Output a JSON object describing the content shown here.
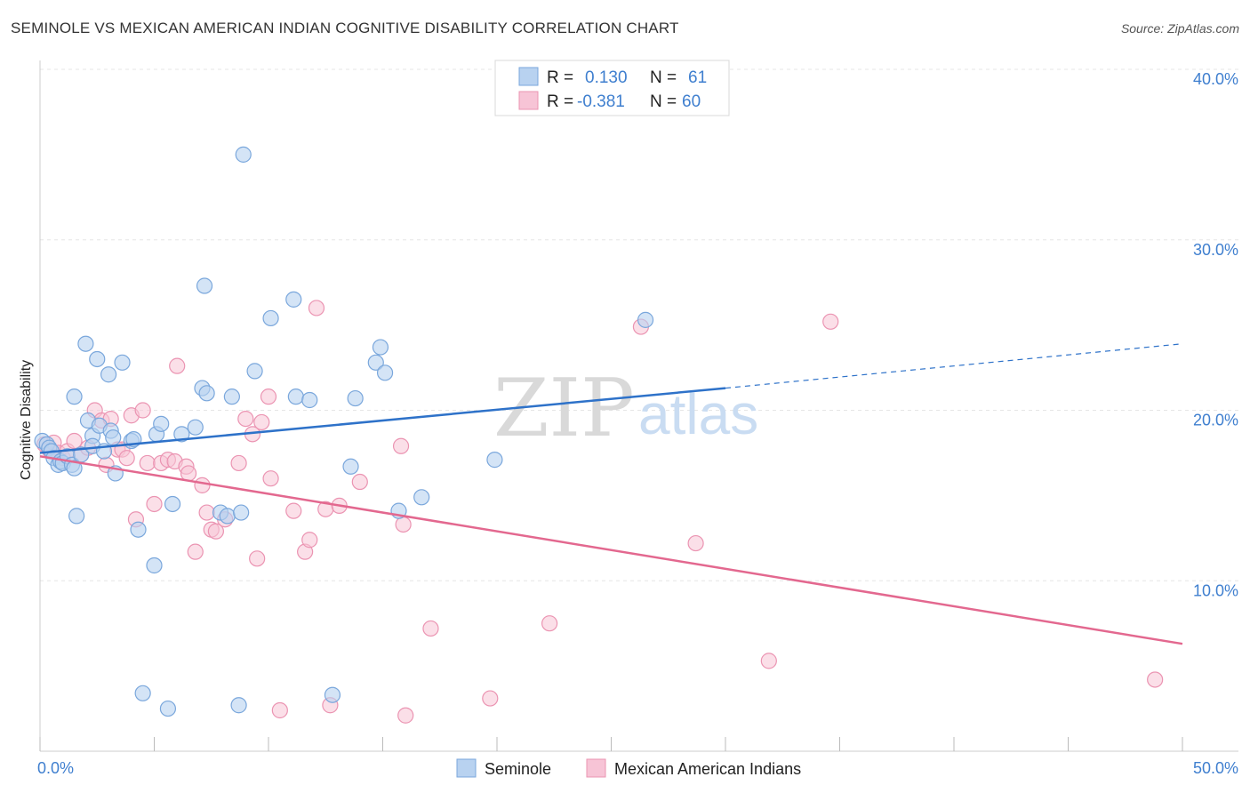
{
  "header": {
    "title": "SEMINOLE VS MEXICAN AMERICAN INDIAN COGNITIVE DISABILITY CORRELATION CHART",
    "source": "Source: ZipAtlas.com"
  },
  "watermark": {
    "zip": "ZIP",
    "atlas": "atlas"
  },
  "legend_top": {
    "rows": [
      {
        "r_label": "R =",
        "r_value": "0.130",
        "n_label": "N =",
        "n_value": "61"
      },
      {
        "r_label": "R =",
        "r_value": "-0.381",
        "n_label": "N =",
        "n_value": "60"
      }
    ]
  },
  "legend_bottom": {
    "items": [
      "Seminole",
      "Mexican American Indians"
    ]
  },
  "colors": {
    "seminole_fill": "#b8d2f0",
    "seminole_stroke": "#7aa7dc",
    "seminole_line": "#2e72c9",
    "mexican_fill": "#f7c4d6",
    "mexican_stroke": "#eb94b2",
    "mexican_line": "#e3688f",
    "tick_text": "#3f7fcf",
    "grid": "#e6e6e6"
  },
  "chart_data": {
    "type": "scatter",
    "title": "SEMINOLE VS MEXICAN AMERICAN INDIAN COGNITIVE DISABILITY CORRELATION CHART",
    "xlabel": "",
    "ylabel": "Cognitive Disability",
    "xlim": [
      0,
      50
    ],
    "ylim": [
      0,
      40
    ],
    "x_tick_labels": [
      "0.0%",
      "50.0%"
    ],
    "y_ticks": [
      10,
      20,
      30,
      40
    ],
    "y_tick_labels": [
      "10.0%",
      "20.0%",
      "30.0%",
      "40.0%"
    ],
    "grid": true,
    "legend_placement": "top-center",
    "series": [
      {
        "name": "Seminole",
        "r": 0.13,
        "n": 61,
        "trend": {
          "x0": 0,
          "y0": 17.5,
          "x1": 30,
          "y1": 21.3,
          "dashed_to_x": 50,
          "dashed_to_y": 23.9
        },
        "points": [
          [
            0.1,
            18.2
          ],
          [
            0.3,
            18.0
          ],
          [
            0.4,
            17.8
          ],
          [
            0.5,
            17.6
          ],
          [
            0.6,
            17.2
          ],
          [
            0.8,
            16.8
          ],
          [
            0.9,
            17.0
          ],
          [
            1.0,
            16.9
          ],
          [
            1.2,
            17.3
          ],
          [
            1.4,
            16.8
          ],
          [
            1.5,
            16.6
          ],
          [
            1.6,
            13.8
          ],
          [
            1.8,
            17.4
          ],
          [
            1.5,
            20.8
          ],
          [
            2.0,
            23.9
          ],
          [
            2.1,
            19.4
          ],
          [
            2.3,
            18.5
          ],
          [
            2.3,
            17.9
          ],
          [
            2.5,
            23.0
          ],
          [
            2.6,
            19.1
          ],
          [
            2.8,
            17.6
          ],
          [
            3.0,
            22.1
          ],
          [
            3.1,
            18.8
          ],
          [
            3.2,
            18.4
          ],
          [
            3.3,
            16.3
          ],
          [
            3.6,
            22.8
          ],
          [
            4.0,
            18.2
          ],
          [
            4.1,
            18.3
          ],
          [
            4.3,
            13.0
          ],
          [
            4.5,
            3.4
          ],
          [
            5.0,
            10.9
          ],
          [
            5.1,
            18.6
          ],
          [
            5.3,
            19.2
          ],
          [
            5.6,
            2.5
          ],
          [
            5.8,
            14.5
          ],
          [
            6.2,
            18.6
          ],
          [
            6.8,
            19.0
          ],
          [
            7.1,
            21.3
          ],
          [
            7.2,
            27.3
          ],
          [
            7.3,
            21.0
          ],
          [
            7.9,
            14.0
          ],
          [
            8.2,
            13.8
          ],
          [
            8.4,
            20.8
          ],
          [
            8.7,
            2.7
          ],
          [
            8.8,
            14.0
          ],
          [
            8.9,
            35.0
          ],
          [
            9.4,
            22.3
          ],
          [
            10.1,
            25.4
          ],
          [
            11.1,
            26.5
          ],
          [
            11.2,
            20.8
          ],
          [
            11.8,
            20.6
          ],
          [
            12.8,
            3.3
          ],
          [
            13.6,
            16.7
          ],
          [
            13.8,
            20.7
          ],
          [
            14.7,
            22.8
          ],
          [
            14.9,
            23.7
          ],
          [
            15.1,
            22.2
          ],
          [
            15.7,
            14.1
          ],
          [
            16.7,
            14.9
          ],
          [
            19.9,
            17.1
          ],
          [
            26.5,
            25.3
          ]
        ]
      },
      {
        "name": "Mexican American Indians",
        "r": -0.381,
        "n": 60,
        "trend": {
          "x0": 0,
          "y0": 17.3,
          "x1": 50,
          "y1": 6.3
        },
        "points": [
          [
            0.2,
            18.0
          ],
          [
            0.4,
            17.7
          ],
          [
            0.6,
            18.1
          ],
          [
            0.8,
            17.5
          ],
          [
            1.0,
            17.2
          ],
          [
            1.2,
            17.6
          ],
          [
            1.5,
            18.2
          ],
          [
            1.8,
            17.4
          ],
          [
            2.1,
            17.8
          ],
          [
            2.4,
            20.0
          ],
          [
            2.7,
            19.4
          ],
          [
            2.9,
            16.8
          ],
          [
            3.1,
            19.5
          ],
          [
            3.4,
            17.7
          ],
          [
            3.6,
            17.7
          ],
          [
            3.8,
            17.2
          ],
          [
            4.0,
            19.7
          ],
          [
            4.2,
            13.6
          ],
          [
            4.5,
            20.0
          ],
          [
            4.7,
            16.9
          ],
          [
            5.0,
            14.5
          ],
          [
            5.3,
            16.9
          ],
          [
            5.6,
            17.1
          ],
          [
            5.9,
            17.0
          ],
          [
            6.0,
            22.6
          ],
          [
            6.4,
            16.7
          ],
          [
            6.5,
            16.3
          ],
          [
            6.8,
            11.7
          ],
          [
            7.1,
            15.6
          ],
          [
            7.3,
            14.0
          ],
          [
            7.5,
            13.0
          ],
          [
            7.7,
            12.9
          ],
          [
            8.1,
            13.6
          ],
          [
            8.7,
            16.9
          ],
          [
            9.0,
            19.5
          ],
          [
            9.3,
            18.6
          ],
          [
            9.5,
            11.3
          ],
          [
            9.7,
            19.3
          ],
          [
            10.0,
            20.8
          ],
          [
            10.1,
            16.0
          ],
          [
            10.5,
            2.4
          ],
          [
            11.1,
            14.1
          ],
          [
            11.6,
            11.7
          ],
          [
            11.8,
            12.4
          ],
          [
            12.1,
            26.0
          ],
          [
            12.5,
            14.2
          ],
          [
            12.7,
            2.7
          ],
          [
            13.1,
            14.4
          ],
          [
            14.0,
            15.8
          ],
          [
            15.8,
            17.9
          ],
          [
            15.9,
            13.3
          ],
          [
            16.0,
            2.1
          ],
          [
            17.1,
            7.2
          ],
          [
            19.7,
            3.1
          ],
          [
            22.3,
            7.5
          ],
          [
            26.3,
            24.9
          ],
          [
            28.7,
            12.2
          ],
          [
            31.9,
            5.3
          ],
          [
            34.6,
            25.2
          ],
          [
            48.8,
            4.2
          ]
        ]
      }
    ]
  }
}
